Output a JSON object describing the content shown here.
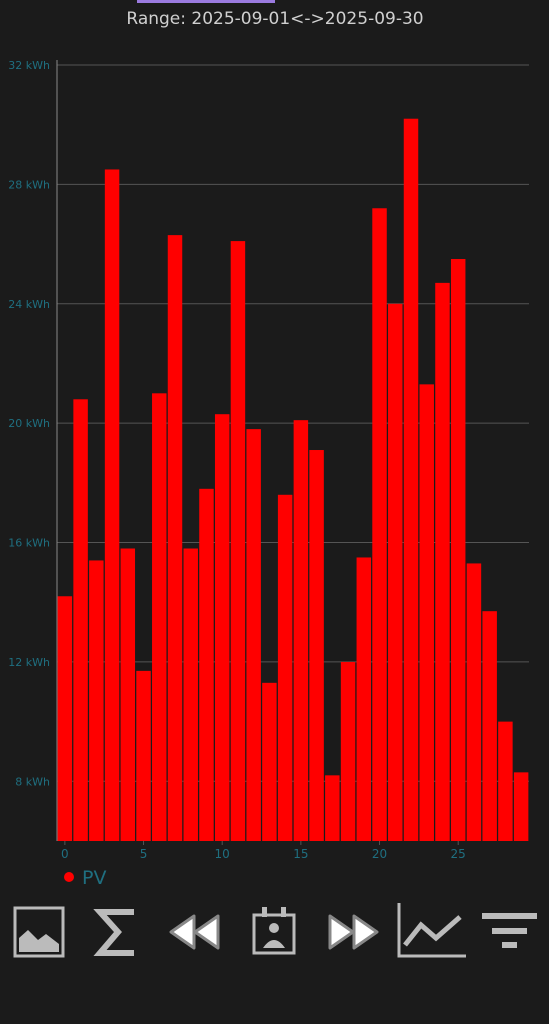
{
  "range_label": "Range: 2025-09-01<->2025-09-30",
  "chart_data": {
    "type": "bar",
    "x": [
      0,
      1,
      2,
      3,
      4,
      5,
      6,
      7,
      8,
      9,
      10,
      11,
      12,
      13,
      14,
      15,
      16,
      17,
      18,
      19,
      20,
      21,
      22,
      23,
      24,
      25,
      26,
      27,
      28,
      29
    ],
    "series": [
      {
        "name": "PV",
        "color": "#ff0000",
        "values": [
          14.2,
          20.8,
          15.4,
          28.5,
          15.8,
          11.7,
          21.0,
          26.3,
          15.8,
          17.8,
          20.3,
          26.1,
          19.8,
          11.3,
          17.6,
          20.1,
          19.1,
          8.2,
          12.0,
          15.5,
          27.2,
          24.0,
          30.2,
          21.3,
          24.7,
          25.5,
          15.3,
          13.7,
          10.0,
          8.3
        ]
      }
    ],
    "xlim": [
      -0.5,
      29.5
    ],
    "xticks": [
      0,
      5,
      10,
      15,
      20,
      25
    ],
    "ylim": [
      6,
      32
    ],
    "yticks": [
      {
        "value": 8,
        "label": "8 kWh"
      },
      {
        "value": 12,
        "label": "12 kWh"
      },
      {
        "value": 16,
        "label": "16 kWh"
      },
      {
        "value": 20,
        "label": "20 kWh"
      },
      {
        "value": 24,
        "label": "24 kWh"
      },
      {
        "value": 28,
        "label": "28 kWh"
      },
      {
        "value": 32,
        "label": "32 kWh"
      }
    ],
    "grid": true,
    "legend": "bottom-left"
  }
}
